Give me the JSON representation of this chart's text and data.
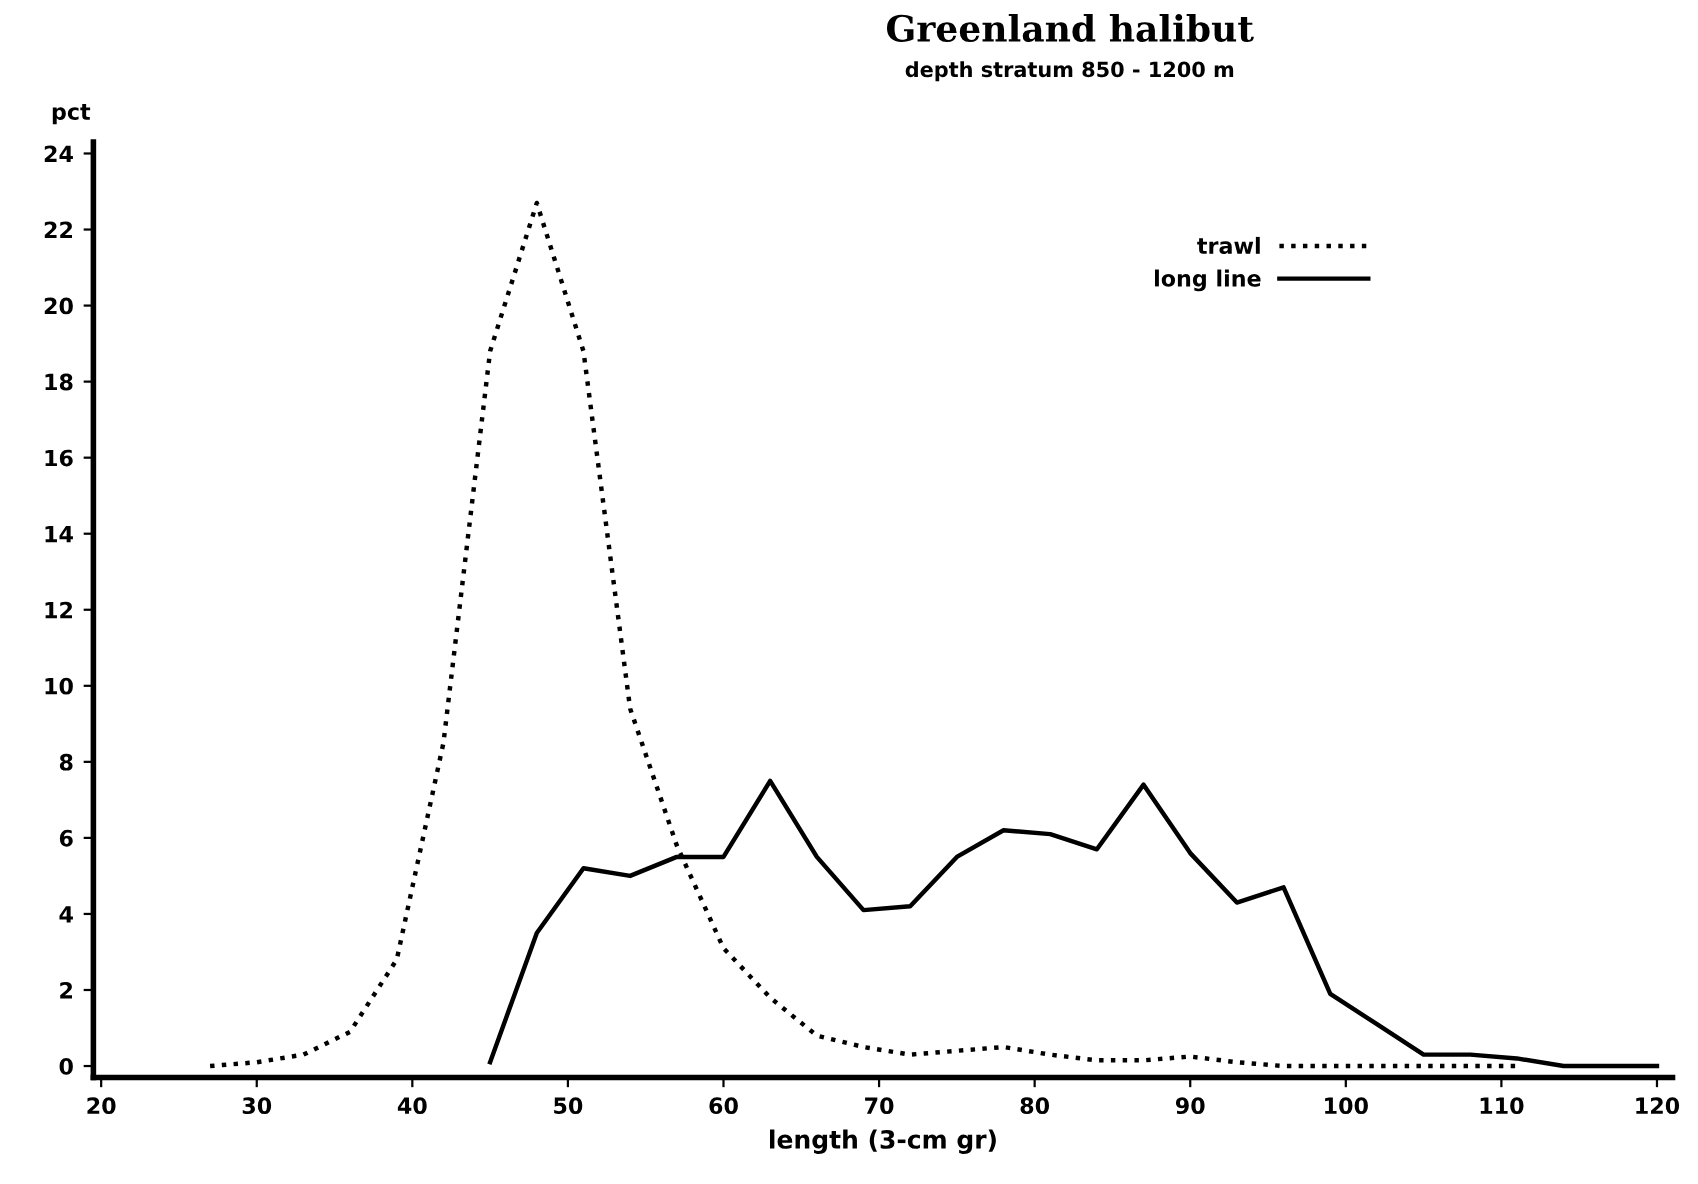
{
  "chart_data": {
    "type": "line",
    "title": "Greenland halibut",
    "subtitle": "depth stratum 850 - 1200 m",
    "xlabel": "length (3-cm gr)",
    "ylabel": "pct",
    "series": [
      {
        "name": "trawl",
        "color": "#000000",
        "line_style": "dotted",
        "x": [
          27,
          30,
          33,
          36,
          39,
          42,
          45,
          48,
          51,
          54,
          57,
          60,
          63,
          66,
          69,
          72,
          75,
          78,
          81,
          84,
          87,
          90,
          93,
          96,
          99,
          102,
          105,
          108,
          111
        ],
        "values": [
          0,
          0.1,
          0.3,
          0.9,
          2.8,
          8.5,
          18.8,
          22.7,
          18.8,
          9.4,
          5.8,
          3.1,
          1.8,
          0.8,
          0.5,
          0.3,
          0.4,
          0.5,
          0.3,
          0.15,
          0.15,
          0.25,
          0.1,
          0,
          0,
          0,
          0,
          0,
          0
        ]
      },
      {
        "name": "long line",
        "color": "#000000",
        "line_style": "solid",
        "x": [
          45,
          48,
          51,
          54,
          57,
          60,
          63,
          66,
          69,
          72,
          75,
          78,
          81,
          84,
          87,
          90,
          93,
          96,
          99,
          102,
          105,
          108,
          111,
          114,
          117,
          120
        ],
        "values": [
          0.1,
          3.5,
          5.2,
          5.0,
          5.5,
          5.5,
          7.5,
          5.5,
          4.1,
          4.2,
          5.5,
          6.2,
          6.1,
          5.7,
          7.4,
          5.6,
          4.3,
          4.7,
          1.9,
          1.1,
          0.3,
          0.3,
          0.2,
          0,
          0,
          0
        ]
      }
    ],
    "xlim": [
      19.5,
      121
    ],
    "ylim": [
      -0.3,
      24.3
    ],
    "xticks": [
      20,
      30,
      40,
      50,
      60,
      70,
      80,
      90,
      100,
      110,
      120
    ],
    "yticks": [
      0,
      2,
      4,
      6,
      8,
      10,
      12,
      14,
      16,
      18,
      20,
      22,
      24
    ],
    "grid": false,
    "legend": "top right"
  }
}
